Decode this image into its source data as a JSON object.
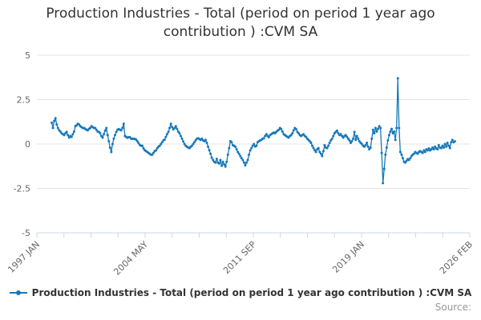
{
  "title": "Production Industries - Total (period on period 1 year ago contribution ) :CVM SA",
  "legend": {
    "label": "Production Industries - Total (period on period 1 year ago contribution ) :CVM SA"
  },
  "source": {
    "label": "Source:"
  },
  "colors": {
    "series": "#1778ba",
    "axis": "#ccd6eb",
    "grid": "#e6e6e6",
    "title_text": "#333333",
    "tick_label": "#666666",
    "legend_text": "#333333",
    "source_text": "#999999"
  },
  "chart_data": {
    "type": "line",
    "title": "Production Industries - Total (period on period 1 year ago contribution ) :CVM SA",
    "xlabel": "",
    "ylabel": "",
    "ylim": [
      -5,
      5
    ],
    "y_ticks": [
      5,
      2.5,
      0,
      -2.5,
      -5
    ],
    "y_tick_labels": [
      "5",
      "2.5",
      "0",
      "-2.5",
      "-5"
    ],
    "x_range_months": 349,
    "x_start_label": "1997 JAN",
    "x_end_label": "2026 FEB",
    "x_major_tick_labels": [
      "1997 JAN",
      "2004 MAY",
      "2011 SEP",
      "2019 JAN",
      "2026 FEB"
    ],
    "x_minor_ticks_between_major": 3,
    "grid": "horizontal",
    "legend_position": "bottom",
    "marker": "circle",
    "series": [
      {
        "name": "Production Industries - Total (period on period 1 year ago contribution ) :CVM SA",
        "frequency": "monthly",
        "start": "1998 JAN",
        "start_month_offset": 12,
        "end": "2025 FEB",
        "values": [
          1.2,
          0.9,
          1.3,
          1.45,
          1.1,
          0.9,
          0.77,
          0.7,
          0.6,
          0.55,
          0.5,
          0.6,
          0.68,
          0.5,
          0.36,
          0.45,
          0.4,
          0.55,
          0.7,
          1.0,
          1.05,
          1.14,
          1.1,
          1.0,
          0.95,
          0.9,
          0.9,
          0.85,
          0.8,
          0.77,
          0.85,
          0.9,
          1.0,
          0.95,
          0.9,
          0.9,
          0.8,
          0.7,
          0.68,
          0.6,
          0.45,
          0.36,
          0.55,
          0.75,
          0.9,
          0.5,
          0.16,
          -0.2,
          -0.45,
          0.0,
          0.3,
          0.5,
          0.68,
          0.8,
          0.84,
          0.8,
          0.77,
          0.9,
          1.14,
          0.45,
          0.4,
          0.35,
          0.38,
          0.38,
          0.3,
          0.3,
          0.3,
          0.28,
          0.25,
          0.15,
          0.05,
          -0.05,
          -0.1,
          -0.1,
          -0.25,
          -0.35,
          -0.4,
          -0.45,
          -0.5,
          -0.55,
          -0.6,
          -0.6,
          -0.5,
          -0.4,
          -0.36,
          -0.25,
          -0.15,
          -0.1,
          0.0,
          0.1,
          0.2,
          0.25,
          0.4,
          0.55,
          0.68,
          0.9,
          1.14,
          0.95,
          0.82,
          0.9,
          1.0,
          0.85,
          0.7,
          0.6,
          0.45,
          0.3,
          0.14,
          0.0,
          -0.1,
          -0.15,
          -0.2,
          -0.23,
          -0.15,
          -0.1,
          0.0,
          0.1,
          0.2,
          0.3,
          0.32,
          0.28,
          0.23,
          0.3,
          0.2,
          0.16,
          0.23,
          0.07,
          -0.15,
          -0.35,
          -0.55,
          -0.77,
          -0.9,
          -1.0,
          -1.05,
          -0.84,
          -1.05,
          -1.1,
          -0.9,
          -1.23,
          -1.0,
          -1.15,
          -1.27,
          -1.0,
          -0.6,
          -0.23,
          0.16,
          0.1,
          -0.07,
          -0.1,
          -0.15,
          -0.3,
          -0.45,
          -0.55,
          -0.68,
          -0.8,
          -0.9,
          -1.05,
          -1.2,
          -1.05,
          -0.9,
          -0.6,
          -0.36,
          -0.23,
          -0.1,
          0.0,
          -0.14,
          -0.1,
          0.1,
          0.16,
          0.2,
          0.23,
          0.3,
          0.32,
          0.45,
          0.55,
          0.45,
          0.38,
          0.5,
          0.55,
          0.6,
          0.65,
          0.6,
          0.68,
          0.75,
          0.8,
          0.9,
          0.84,
          0.7,
          0.55,
          0.5,
          0.45,
          0.4,
          0.36,
          0.45,
          0.5,
          0.6,
          0.77,
          0.9,
          0.84,
          0.68,
          0.6,
          0.5,
          0.45,
          0.5,
          0.55,
          0.45,
          0.4,
          0.3,
          0.23,
          0.15,
          0.07,
          -0.1,
          -0.23,
          -0.35,
          -0.45,
          -0.3,
          -0.23,
          -0.45,
          -0.55,
          -0.68,
          -0.4,
          -0.07,
          -0.2,
          -0.23,
          -0.1,
          0.07,
          0.2,
          0.3,
          0.45,
          0.6,
          0.68,
          0.75,
          0.6,
          0.5,
          0.55,
          0.45,
          0.36,
          0.45,
          0.5,
          0.4,
          0.3,
          0.2,
          0.07,
          0.16,
          0.3,
          0.68,
          0.23,
          0.45,
          0.3,
          0.16,
          0.07,
          0.0,
          -0.1,
          -0.15,
          -0.07,
          0.07,
          -0.15,
          -0.3,
          -0.2,
          0.3,
          0.8,
          0.6,
          0.9,
          0.7,
          0.85,
          1.0,
          0.9,
          -0.5,
          -2.2,
          -1.4,
          -0.6,
          -0.2,
          0.2,
          0.5,
          0.7,
          0.85,
          0.6,
          0.7,
          0.23,
          0.9,
          3.7,
          0.9,
          -0.45,
          -0.6,
          -0.8,
          -1.0,
          -1.05,
          -0.95,
          -0.85,
          -0.9,
          -0.8,
          -0.68,
          -0.6,
          -0.55,
          -0.45,
          -0.5,
          -0.55,
          -0.45,
          -0.4,
          -0.45,
          -0.5,
          -0.36,
          -0.45,
          -0.3,
          -0.36,
          -0.25,
          -0.36,
          -0.3,
          -0.2,
          -0.3,
          -0.15,
          -0.25,
          -0.3,
          -0.07,
          -0.2,
          -0.23,
          -0.1,
          -0.2,
          0.0,
          -0.15,
          0.07,
          -0.1,
          -0.23,
          0.1,
          0.23,
          0.1,
          0.15
        ]
      }
    ]
  }
}
